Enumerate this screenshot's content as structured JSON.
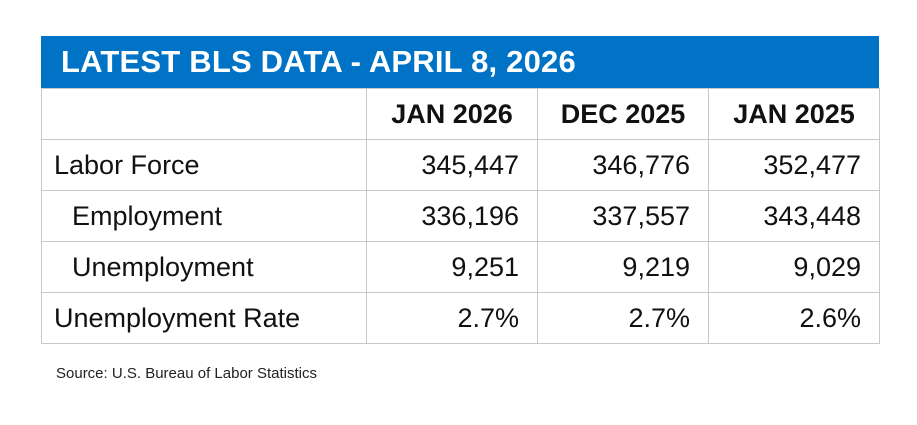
{
  "title": "LATEST BLS DATA - APRIL 8, 2026",
  "columns": [
    "",
    "JAN 2026",
    "DEC 2025",
    "JAN 2025"
  ],
  "rows": [
    {
      "label": "Labor Force",
      "values": [
        "345,447",
        "346,776",
        "352,477"
      ]
    },
    {
      "label": "Employment",
      "values": [
        "336,196",
        "337,557",
        "343,448"
      ]
    },
    {
      "label": "Unemployment",
      "values": [
        "9,251",
        "9,219",
        "9,029"
      ]
    },
    {
      "label": "Unemployment Rate",
      "values": [
        "2.7%",
        "2.7%",
        "2.6%"
      ]
    }
  ],
  "source": "Source: U.S. Bureau of Labor Statistics",
  "colors": {
    "header_bg": "#0073c6",
    "header_text": "#ffffff",
    "border": "#c8c8c8"
  }
}
